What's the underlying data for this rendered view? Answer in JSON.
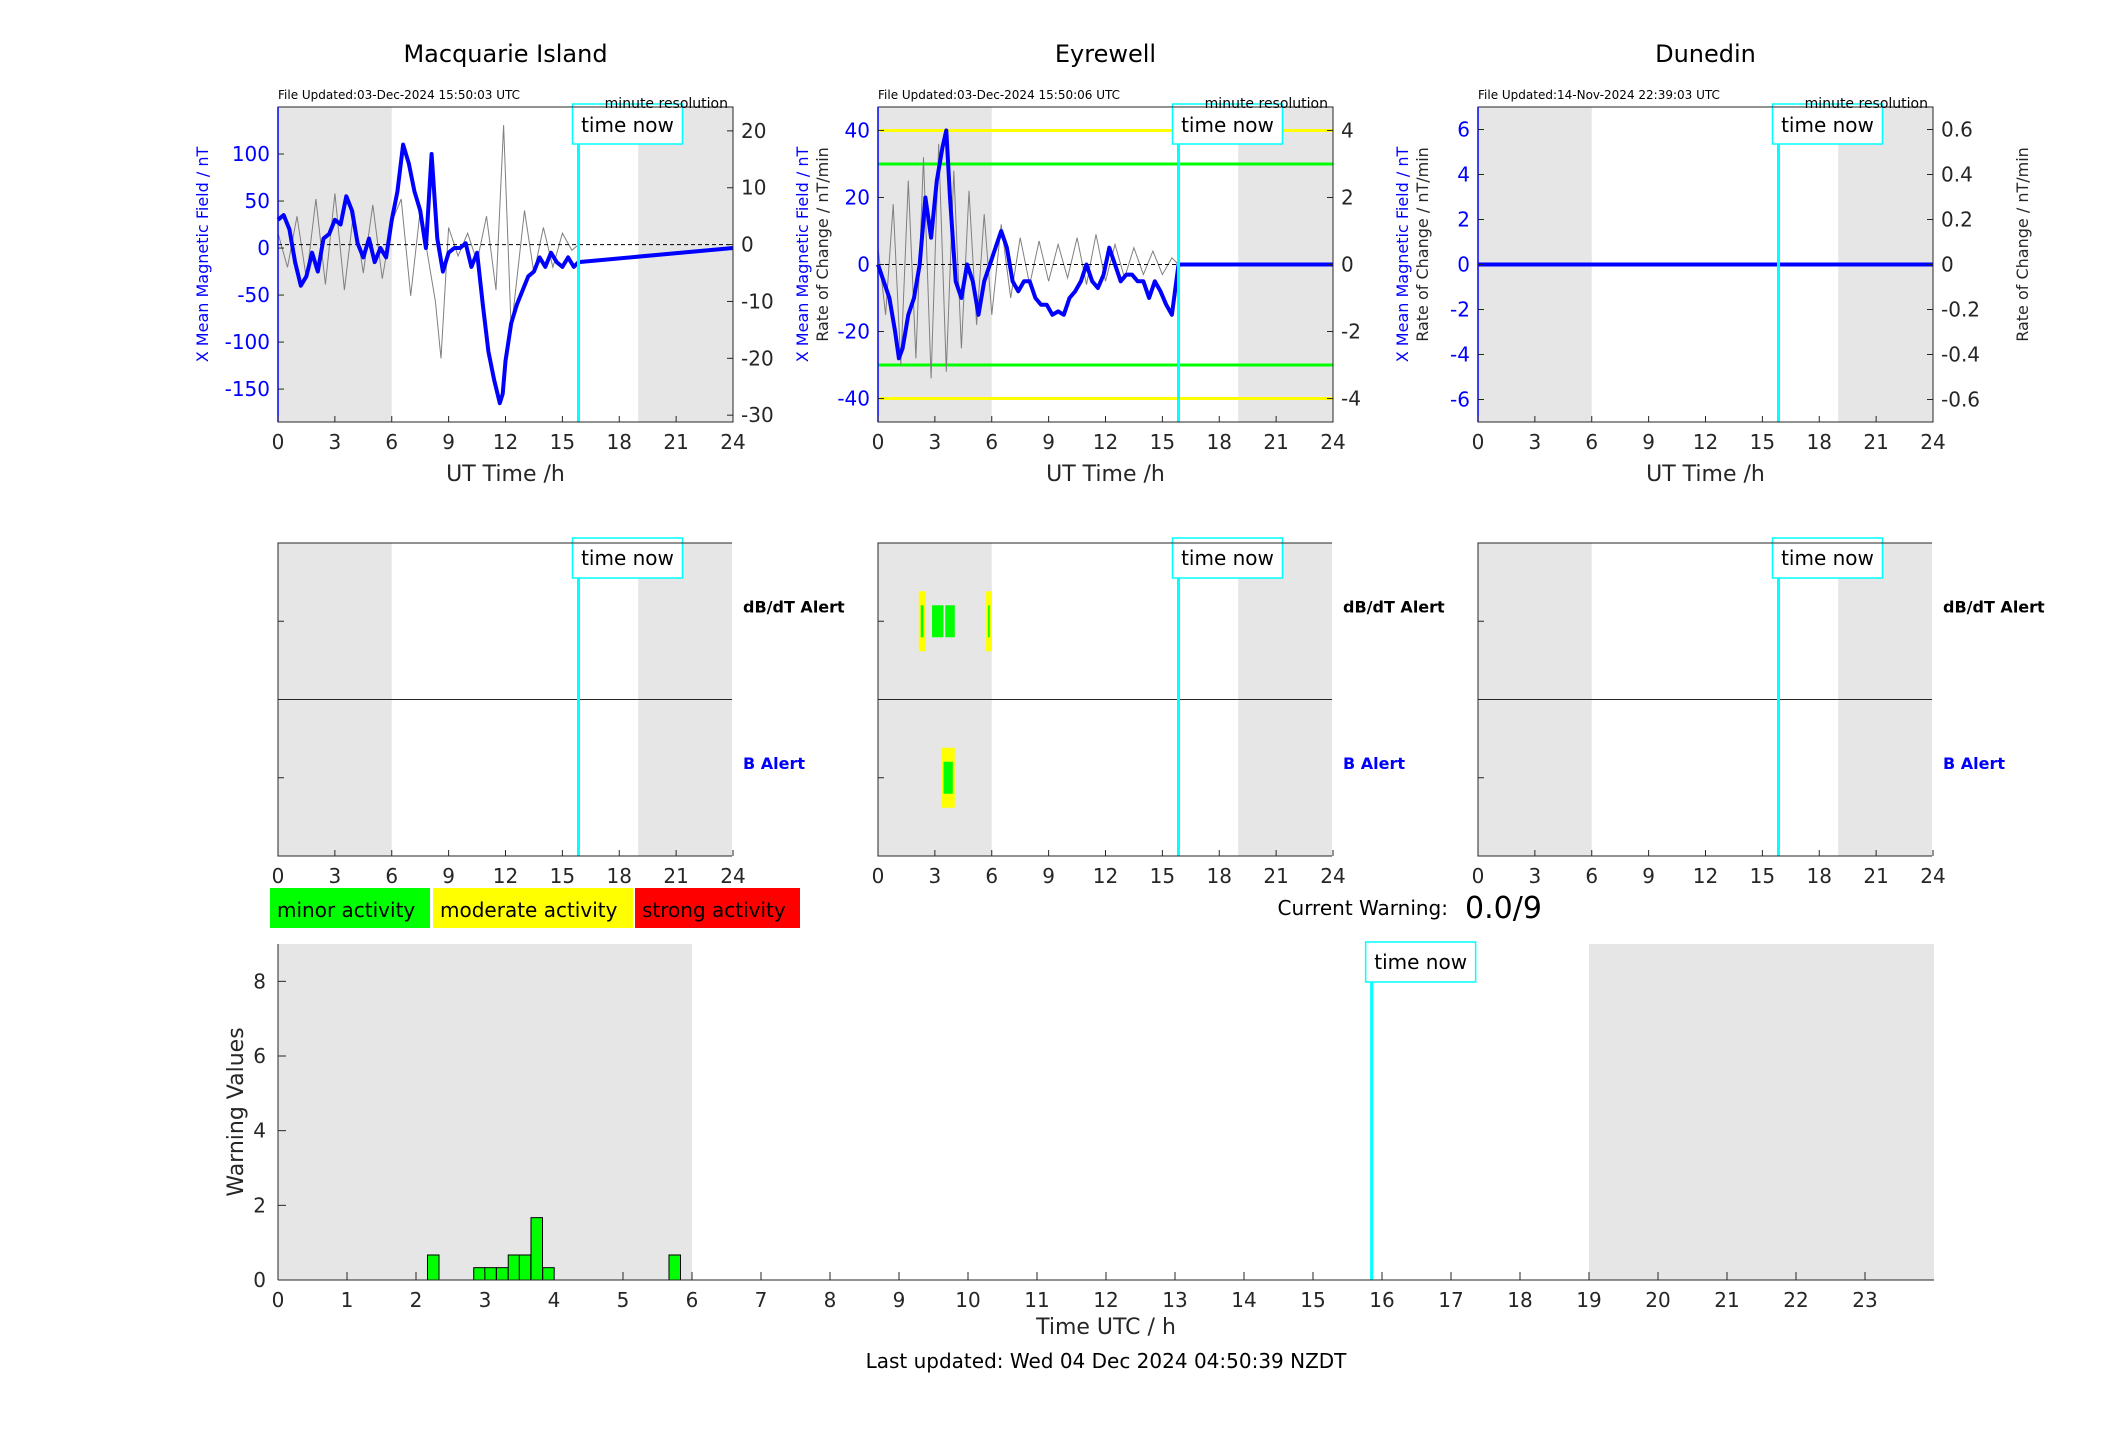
{
  "stations": [
    {
      "name": "Macquarie Island",
      "file_updated": "File Updated:03-Dec-2024 15:50:03 UTC",
      "resolution": "minute resolution",
      "left_ylabel": "X Mean Magnetic Field / nT",
      "right_ylabel": "Rate of Change / nT/min",
      "left_ticks": [
        100,
        50,
        0,
        -50,
        -100,
        -150
      ],
      "right_ticks": [
        20,
        10,
        0,
        -10,
        -20,
        -30
      ],
      "left_ylim": [
        -185,
        150
      ],
      "right_ylim": [
        -31.2,
        24.2
      ]
    },
    {
      "name": "Eyrewell",
      "file_updated": "File Updated:03-Dec-2024 15:50:06 UTC",
      "resolution": "minute resolution",
      "left_ylabel": "X Mean Magnetic Field / nT",
      "right_ylabel": "Rate of Change / nT/min",
      "left_ticks": [
        40,
        20,
        0,
        -20,
        -40
      ],
      "right_ticks": [
        4,
        2,
        0,
        -2,
        -4
      ],
      "left_ylim": [
        -47,
        47
      ],
      "right_ylim": [
        -4.7,
        4.7
      ],
      "thresholds": {
        "yellow": [
          40,
          -40
        ],
        "green": [
          30,
          -30
        ]
      }
    },
    {
      "name": "Dunedin",
      "file_updated": "File Updated:14-Nov-2024 22:39:03 UTC",
      "resolution": "minute resolution",
      "left_ylabel": "X Mean Magnetic Field / nT",
      "right_ylabel": "Rate of Change / nT/min",
      "left_ticks": [
        6,
        4,
        2,
        0,
        -2,
        -4,
        -6
      ],
      "right_ticks": [
        "0.6",
        "0.4",
        "0.2",
        "0",
        "-0.2",
        "-0.4",
        "-0.6"
      ],
      "left_ylim": [
        -7,
        7
      ],
      "right_ylim": [
        -0.7,
        0.7
      ]
    }
  ],
  "chart_data": [
    {
      "type": "line",
      "station": "Macquarie Island",
      "xlabel": "UT Time /h",
      "xlim": [
        0,
        24
      ],
      "xticks": [
        0,
        3,
        6,
        9,
        12,
        15,
        18,
        21,
        24
      ],
      "night_shading_hours": [
        [
          0,
          6
        ],
        [
          19,
          24
        ]
      ],
      "time_now": 15.85,
      "time_now_label": "time now",
      "series": [
        {
          "axis": "left",
          "color": "#0000ff",
          "x": [
            0,
            0.3,
            0.6,
            0.9,
            1.2,
            1.5,
            1.8,
            2.1,
            2.4,
            2.7,
            3.0,
            3.3,
            3.6,
            3.9,
            4.2,
            4.5,
            4.8,
            5.1,
            5.4,
            5.7,
            6.0,
            6.3,
            6.6,
            6.9,
            7.2,
            7.5,
            7.8,
            8.1,
            8.4,
            8.7,
            9.0,
            9.3,
            9.6,
            9.9,
            10.2,
            10.5,
            10.8,
            11.1,
            11.4,
            11.7,
            11.85,
            12.0,
            12.3,
            12.6,
            12.9,
            13.2,
            13.5,
            13.8,
            14.1,
            14.4,
            14.7,
            15.0,
            15.3,
            15.6,
            15.85,
            24
          ],
          "y": [
            30,
            35,
            20,
            -15,
            -40,
            -30,
            -5,
            -25,
            10,
            15,
            30,
            25,
            55,
            40,
            5,
            -10,
            10,
            -15,
            0,
            -10,
            30,
            60,
            110,
            90,
            60,
            40,
            0,
            100,
            10,
            -25,
            -5,
            0,
            0,
            5,
            -20,
            -5,
            -60,
            -110,
            -140,
            -165,
            -155,
            -120,
            -80,
            -60,
            -45,
            -30,
            -25,
            -10,
            -20,
            -5,
            -15,
            -20,
            -10,
            -20,
            -15,
            0
          ]
        },
        {
          "axis": "right",
          "color": "#808080",
          "x": [
            0,
            0.5,
            1.0,
            1.5,
            2.0,
            2.5,
            3.0,
            3.5,
            4.0,
            4.5,
            5.0,
            5.5,
            6.0,
            6.5,
            7.0,
            7.5,
            8.0,
            8.3,
            8.6,
            9.0,
            9.5,
            10.0,
            10.5,
            11.0,
            11.5,
            11.9,
            12.3,
            13.0,
            13.5,
            14.0,
            14.5,
            15.0,
            15.5,
            15.85
          ],
          "y": [
            2,
            -4,
            5,
            -6,
            8,
            -7,
            9,
            -8,
            6,
            -5,
            7,
            -6,
            4,
            8,
            -9,
            6,
            -4,
            -10,
            -20,
            3,
            -2,
            2,
            -3,
            5,
            -8,
            21,
            -15,
            6,
            -5,
            3,
            -4,
            2,
            -1,
            0
          ]
        }
      ]
    },
    {
      "type": "line",
      "station": "Eyrewell",
      "xlabel": "UT Time /h",
      "xlim": [
        0,
        24
      ],
      "xticks": [
        0,
        3,
        6,
        9,
        12,
        15,
        18,
        21,
        24
      ],
      "night_shading_hours": [
        [
          0,
          6
        ],
        [
          19,
          24
        ]
      ],
      "time_now": 15.85,
      "time_now_label": "time now",
      "series": [
        {
          "axis": "left",
          "color": "#0000ff",
          "x": [
            0,
            0.3,
            0.6,
            0.9,
            1.1,
            1.3,
            1.6,
            1.9,
            2.2,
            2.5,
            2.8,
            3.1,
            3.4,
            3.6,
            3.8,
            4.1,
            4.4,
            4.7,
            5.0,
            5.3,
            5.6,
            5.9,
            6.2,
            6.5,
            6.8,
            7.1,
            7.4,
            7.7,
            8.0,
            8.3,
            8.6,
            8.9,
            9.2,
            9.5,
            9.8,
            10.1,
            10.4,
            10.7,
            11.0,
            11.3,
            11.6,
            11.9,
            12.2,
            12.5,
            12.8,
            13.1,
            13.4,
            13.7,
            14.0,
            14.3,
            14.6,
            14.9,
            15.2,
            15.5,
            15.85,
            24
          ],
          "y": [
            0,
            -5,
            -10,
            -20,
            -28,
            -25,
            -15,
            -10,
            0,
            20,
            8,
            25,
            35,
            40,
            20,
            -5,
            -10,
            0,
            -5,
            -15,
            -5,
            0,
            5,
            10,
            5,
            -5,
            -8,
            -5,
            -5,
            -10,
            -12,
            -12,
            -15,
            -14,
            -15,
            -10,
            -8,
            -5,
            0,
            -5,
            -7,
            -3,
            5,
            0,
            -5,
            -3,
            -3,
            -5,
            -5,
            -10,
            -5,
            -8,
            -12,
            -15,
            0,
            0
          ]
        },
        {
          "axis": "right",
          "color": "#808080",
          "x": [
            0,
            0.4,
            0.8,
            1.2,
            1.6,
            2.0,
            2.4,
            2.8,
            3.2,
            3.6,
            4.0,
            4.4,
            4.8,
            5.2,
            5.6,
            6.0,
            6.5,
            7.0,
            7.5,
            8.0,
            8.5,
            9.0,
            9.5,
            10.0,
            10.5,
            11.0,
            11.5,
            12.0,
            12.5,
            13.0,
            13.5,
            14.0,
            14.5,
            15.0,
            15.5,
            15.85
          ],
          "y": [
            0.5,
            -1.5,
            1.8,
            -3,
            2.5,
            -2.8,
            3.2,
            -3.4,
            3.6,
            -3.2,
            2.8,
            -2.5,
            2.2,
            -1.8,
            1.5,
            -1.5,
            1.2,
            -1,
            0.8,
            -0.6,
            0.7,
            -0.5,
            0.6,
            -0.4,
            0.8,
            -0.6,
            0.9,
            -0.5,
            0.6,
            -0.4,
            0.5,
            -0.3,
            0.4,
            -0.3,
            0.2,
            0
          ]
        }
      ]
    },
    {
      "type": "line",
      "station": "Dunedin",
      "xlabel": "UT Time /h",
      "xlim": [
        0,
        24
      ],
      "xticks": [
        0,
        3,
        6,
        9,
        12,
        15,
        18,
        21,
        24
      ],
      "night_shading_hours": [
        [
          0,
          6
        ],
        [
          19,
          24
        ]
      ],
      "time_now": 15.85,
      "time_now_label": "time now",
      "series": [
        {
          "axis": "left",
          "color": "#0000ff",
          "x": [
            0,
            24
          ],
          "y": [
            0,
            0
          ]
        },
        {
          "axis": "right",
          "color": "#808080",
          "x": [
            0,
            24
          ],
          "y": [
            0,
            0
          ]
        }
      ]
    },
    {
      "type": "alert_panel",
      "xlim": [
        0,
        24
      ],
      "xticks": [
        0,
        3,
        6,
        9,
        12,
        15,
        18,
        21,
        24
      ],
      "rows": [
        "dB/dT Alert",
        "B Alert"
      ],
      "time_now": 15.85,
      "time_now_label": "time now",
      "alerts": [
        {
          "station": "Macquarie Island",
          "dbdt": [],
          "b": []
        },
        {
          "station": "Eyrewell",
          "dbdt": [
            {
              "start": 2.15,
              "end": 2.5,
              "level": "minor",
              "outline": "moderate"
            },
            {
              "start": 2.85,
              "end": 3.45,
              "level": "minor"
            },
            {
              "start": 3.55,
              "end": 4.05,
              "level": "minor"
            },
            {
              "start": 5.7,
              "end": 6.0,
              "level": "minor",
              "outline": "moderate"
            }
          ],
          "b": [
            {
              "start": 3.35,
              "end": 4.05,
              "level": "minor",
              "outline": "moderate"
            }
          ]
        },
        {
          "station": "Dunedin",
          "dbdt": [],
          "b": []
        }
      ]
    },
    {
      "type": "bar",
      "xlabel": "Time UTC / h",
      "ylabel": "Warning Values",
      "xlim": [
        0,
        24
      ],
      "ylim": [
        0,
        9
      ],
      "xticks": [
        0,
        1,
        2,
        3,
        4,
        5,
        6,
        7,
        8,
        9,
        10,
        11,
        12,
        13,
        14,
        15,
        16,
        17,
        18,
        19,
        20,
        21,
        22,
        23
      ],
      "yticks": [
        0,
        2,
        4,
        6,
        8
      ],
      "night_shading_hours": [
        [
          0,
          6
        ],
        [
          19,
          24
        ]
      ],
      "time_now": 15.85,
      "time_now_label": "time now",
      "bar_width_h": 0.1667,
      "x": [
        2.25,
        2.92,
        3.08,
        3.25,
        3.42,
        3.58,
        3.75,
        3.92,
        5.75
      ],
      "values": [
        0.67,
        0.33,
        0.33,
        0.33,
        0.67,
        0.67,
        1.67,
        0.33,
        0.67
      ]
    }
  ],
  "legend": {
    "minor": {
      "label": "minor activity",
      "color": "#00ff00"
    },
    "moderate": {
      "label": "moderate activity",
      "color": "#ffff00"
    },
    "strong": {
      "label": "strong activity",
      "color": "#ff0000"
    }
  },
  "current_warning": {
    "label": "Current Warning:",
    "value": "0.0/9"
  },
  "last_updated": "Last updated: Wed 04 Dec 2024 04:50:39 NZDT",
  "colors": {
    "night": "#e6e6e6",
    "time_now": "#00ffff",
    "field": "#0000ff",
    "rate": "#808080",
    "threshold_yellow": "#ffff00",
    "threshold_green": "#00ff00",
    "axis_blue": "#0000ff"
  }
}
